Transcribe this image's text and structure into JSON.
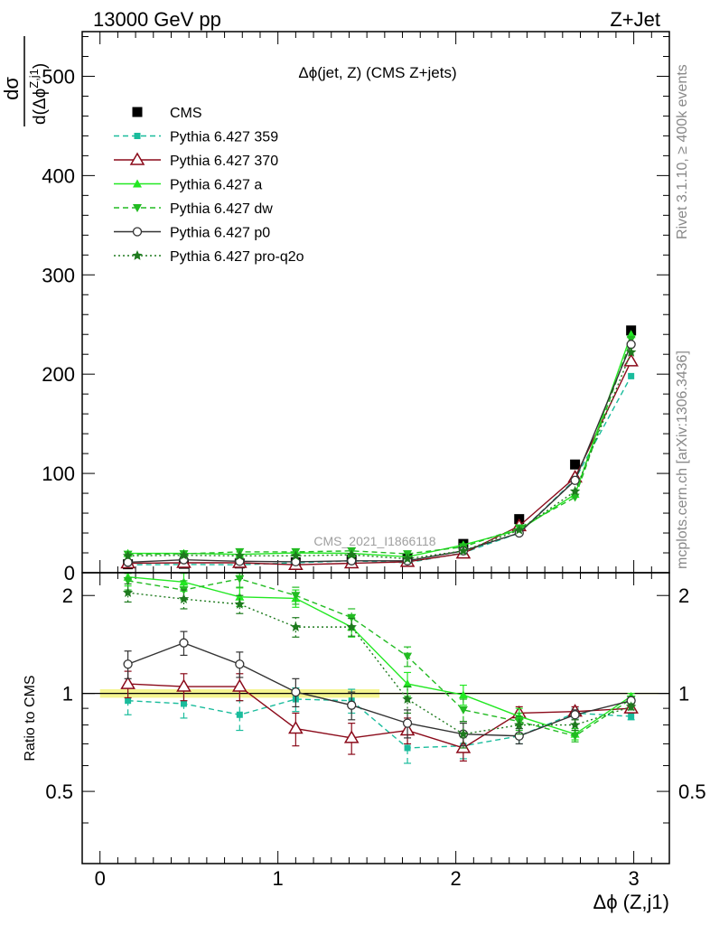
{
  "header": {
    "left": "13000 GeV pp",
    "right": "Z+Jet"
  },
  "side_labels": {
    "rivet": "Rivet 3.1.10, ≥ 400k events",
    "mcplots": "mcplots.cern.ch [arXiv:1306.3436]"
  },
  "watermark": "CMS_2021_I1866118",
  "chart_data": [
    {
      "type": "scatter",
      "panel": "main",
      "title": "Δϕ(jet, Z) (CMS Z+jets)",
      "ylabel_num": "dσ",
      "ylabel_den": "d(Δϕ",
      "ylabel_sup": "Z,j1",
      "ylabel_close": ")",
      "xlim": [
        -0.1,
        3.2
      ],
      "ylim": [
        0,
        545
      ],
      "yticks": [
        0,
        100,
        200,
        300,
        400,
        500
      ],
      "yticklabels": [
        "0",
        "100",
        "200",
        "300",
        "400",
        "500"
      ],
      "x": [
        0.157,
        0.471,
        0.785,
        1.1,
        1.414,
        1.728,
        2.042,
        2.356,
        2.67,
        2.985
      ],
      "series": [
        {
          "name": "CMS",
          "color": "#000000",
          "marker": "square",
          "line": "none",
          "values": [
            8.5,
            9,
            9.3,
            10.5,
            13,
            14.5,
            29,
            54,
            109,
            244
          ]
        },
        {
          "name": "Pythia 6.427 359",
          "color": "#1ABC9C",
          "marker": "square-small",
          "line": "dashed",
          "values": [
            8,
            8.3,
            8,
            10,
            12,
            10,
            20,
            40,
            94,
            198
          ]
        },
        {
          "name": "Pythia 6.427 370",
          "color": "#8B0A1A",
          "marker": "triangle-open",
          "line": "solid",
          "values": [
            9.5,
            10,
            10,
            8,
            9.5,
            11,
            19.5,
            47,
            96,
            213
          ]
        },
        {
          "name": "Pythia 6.427 a",
          "color": "#22E822",
          "marker": "triangle",
          "line": "solid",
          "values": [
            19.5,
            19.5,
            18.5,
            20,
            19.5,
            16,
            28,
            43,
            79,
            240
          ]
        },
        {
          "name": "Pythia 6.427 dw",
          "color": "#22BB22",
          "marker": "triangle-down",
          "line": "dashed",
          "values": [
            18.5,
            19,
            21,
            21,
            22,
            19,
            26,
            45,
            76,
            235
          ]
        },
        {
          "name": "Pythia 6.427 p0",
          "color": "#333333",
          "marker": "circle-open",
          "line": "solid",
          "values": [
            10.5,
            13,
            11.5,
            11,
            12,
            12,
            22,
            40,
            93,
            230
          ]
        },
        {
          "name": "Pythia 6.427 pro-q2o",
          "color": "#1E7A1E",
          "marker": "star",
          "line": "dotted",
          "values": [
            17,
            17.5,
            17,
            17,
            18,
            14,
            22,
            43,
            82,
            222
          ]
        }
      ]
    },
    {
      "type": "scatter",
      "panel": "ratio",
      "ylabel": "Ratio to CMS",
      "xlabel": "Δϕ (Z,j1)",
      "xlim": [
        -0.1,
        3.2
      ],
      "ylim": [
        0.3,
        2.35
      ],
      "xticks": [
        0,
        1,
        2,
        3
      ],
      "xticklabels": [
        "0",
        "1",
        "2",
        "3"
      ],
      "yticks": [
        0.5,
        1,
        2
      ],
      "yticklabels": [
        "0.5",
        "1",
        "2"
      ],
      "x": [
        0.157,
        0.471,
        0.785,
        1.1,
        1.414,
        1.728,
        2.042,
        2.356,
        2.67,
        2.985
      ],
      "series": [
        {
          "name": "Pythia 6.427 359",
          "color": "#1ABC9C",
          "values": [
            0.95,
            0.93,
            0.86,
            0.96,
            0.95,
            0.68,
            0.69,
            0.74,
            0.87,
            0.85
          ],
          "errors": [
            0.09,
            0.09,
            0.09,
            0.08,
            0.08,
            0.07,
            0.06,
            0.04,
            0.03,
            0.02
          ]
        },
        {
          "name": "Pythia 6.427 370",
          "color": "#8B0A1A",
          "values": [
            1.07,
            1.05,
            1.05,
            0.78,
            0.73,
            0.77,
            0.68,
            0.87,
            0.88,
            0.9
          ],
          "errors": [
            0.1,
            0.1,
            0.1,
            0.09,
            0.08,
            0.07,
            0.06,
            0.04,
            0.03,
            0.02
          ]
        },
        {
          "name": "Pythia 6.427 a",
          "color": "#22E822",
          "values": [
            2.28,
            2.2,
            1.98,
            1.96,
            1.6,
            1.07,
            0.99,
            0.85,
            0.75,
            0.98
          ],
          "errors": [
            0.14,
            0.14,
            0.13,
            0.12,
            0.11,
            0.09,
            0.07,
            0.05,
            0.03,
            0.02
          ]
        },
        {
          "name": "Pythia 6.427 dw",
          "color": "#22BB22",
          "values": [
            2.22,
            2.08,
            2.25,
            2.0,
            1.71,
            1.3,
            0.89,
            0.82,
            0.74,
            0.96
          ],
          "errors": [
            0.14,
            0.14,
            0.13,
            0.12,
            0.11,
            0.09,
            0.07,
            0.05,
            0.03,
            0.02
          ]
        },
        {
          "name": "Pythia 6.427 p0",
          "color": "#333333",
          "values": [
            1.23,
            1.43,
            1.23,
            1.01,
            0.92,
            0.81,
            0.75,
            0.74,
            0.86,
            0.95
          ],
          "errors": [
            0.12,
            0.12,
            0.11,
            0.1,
            0.09,
            0.08,
            0.06,
            0.04,
            0.03,
            0.02
          ]
        },
        {
          "name": "Pythia 6.427 pro-q2o",
          "color": "#1E7A1E",
          "values": [
            2.04,
            1.95,
            1.88,
            1.6,
            1.6,
            0.96,
            0.75,
            0.8,
            0.8,
            0.91
          ],
          "errors": [
            0.13,
            0.13,
            0.12,
            0.11,
            0.1,
            0.09,
            0.07,
            0.05,
            0.03,
            0.02
          ]
        }
      ]
    }
  ]
}
